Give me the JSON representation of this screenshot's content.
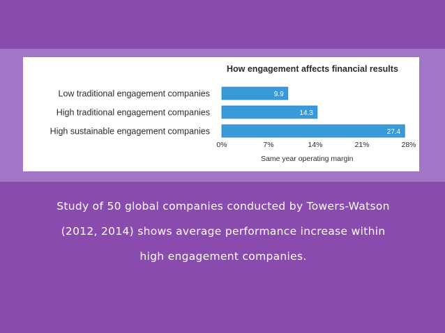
{
  "colors": {
    "background": "#8a4baf",
    "band": "#a275c6",
    "card": "#ffffff",
    "bar": "#3a9ad9",
    "bar_edge": "#2f86c2",
    "text": "#2c2c2c",
    "caption": "#ffffff"
  },
  "chart_data": {
    "type": "bar",
    "orientation": "horizontal",
    "title": "How engagement affects financial results",
    "categories": [
      "Low traditional engagement companies",
      "High traditional engagement companies",
      "High sustainable engagement companies"
    ],
    "values": [
      9.9,
      14.3,
      27.4
    ],
    "data_labels": [
      "9.9",
      "14.3",
      "27.4"
    ],
    "xlabel": "Same year operating margin",
    "ylabel": "",
    "xlim": [
      0,
      28
    ],
    "x_ticks": [
      0,
      7,
      14,
      21,
      28
    ],
    "x_tick_labels": [
      "0%",
      "7%",
      "14%",
      "21%",
      "28%"
    ],
    "grid": false,
    "legend": "none"
  },
  "caption": {
    "text": "Study of 50 global companies conducted by Towers-Watson (2012, 2014) shows average performance increase within high engagement companies."
  }
}
